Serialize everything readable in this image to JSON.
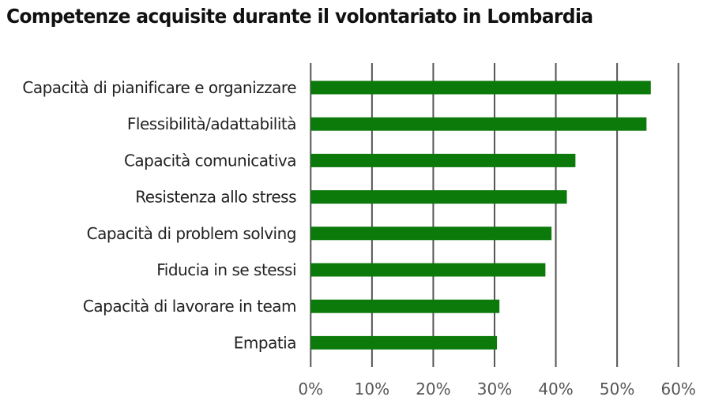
{
  "chart_data": {
    "type": "bar",
    "orientation": "horizontal",
    "title": "Competenze acquisite durante il volontariato in Lombardia",
    "categories": [
      "Capacità di pianificare e organizzare",
      "Flessibilità/adattabilità",
      "Capacità comunicativa",
      "Resistenza allo stress",
      "Capacità di problem solving",
      "Fiducia in se stessi",
      "Capacità di lavorare in team",
      "Empatia"
    ],
    "values": [
      55.5,
      54.8,
      43.2,
      41.8,
      39.3,
      38.3,
      30.8,
      30.4
    ],
    "xlim": [
      0,
      60
    ],
    "xticks": [
      0,
      10,
      20,
      30,
      40,
      50,
      60
    ],
    "xtick_labels": [
      "0%",
      "10%",
      "20%",
      "30%",
      "40%",
      "50%",
      "60%"
    ],
    "xlabel": "",
    "ylabel": "",
    "grid": "vertical",
    "bar_color": "#0b7a0b",
    "grid_color": "#555555"
  }
}
